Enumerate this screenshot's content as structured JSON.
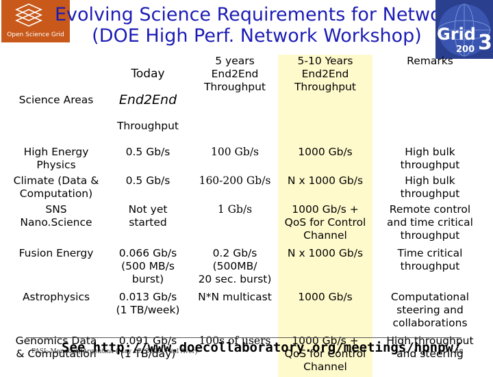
{
  "header": {
    "title_line1": "Evolving Science Requirements for Networks",
    "title_line2": "(DOE High Perf. Network Workshop)",
    "logo_left_text": "Open Science Grid",
    "logo_right_text": "Grid",
    "logo_right_num": "3",
    "logo_right_year": "200"
  },
  "table": {
    "headers": {
      "col1": "Science Areas",
      "col2_a": "Today",
      "col2_b": "End2End",
      "col2_c": "Throughput",
      "col3": "5 years\nEnd2End\nThroughput",
      "col4": "5-10 Years\nEnd2End\nThroughput",
      "col5": "Remarks"
    },
    "rows": [
      [
        "High Energy\nPhysics",
        "0.5 Gb/s",
        "100 Gb/s",
        "1000 Gb/s",
        "High bulk\nthroughput"
      ],
      [
        "Climate (Data &\nComputation)",
        "0.5 Gb/s",
        "160-200 Gb/s",
        "N x 1000 Gb/s",
        "High bulk\nthroughput"
      ],
      [
        "SNS\nNano.Science",
        "Not yet\nstarted",
        "1 Gb/s",
        "1000 Gb/s +\nQoS for Control\nChannel",
        "Remote control\nand time critical\nthroughput"
      ],
      [
        "Fusion Energy",
        "0.066 Gb/s\n(500 MB/s\nburst)",
        "0.2 Gb/s\n(500MB/\n20 sec. burst)",
        "N x 1000 Gb/s",
        "Time critical\nthroughput"
      ],
      [
        "Astrophysics",
        "0.013 Gb/s\n(1 TB/week)",
        "N*N multicast",
        "1000 Gb/s",
        "Computational\nsteering and\ncollaborations"
      ],
      [
        "Genomics Data\n& Computation",
        "0.091 Gb/s\n(1 TB/day)",
        "100s of users",
        "1000 Gb/s +\nQoS for Control\nChannel",
        "High throughput\nand steering"
      ]
    ]
  },
  "footer": {
    "small_text": "PASI: Mendoza, Argentina (May 17, 2005)                    Paul Avery",
    "url_text": "See http://www.doecollaboratory.org/meetings/hpnpw/",
    "slide_number": "48"
  },
  "colors": {
    "title": "#1b1bb5",
    "highlight": "#fffacc"
  }
}
